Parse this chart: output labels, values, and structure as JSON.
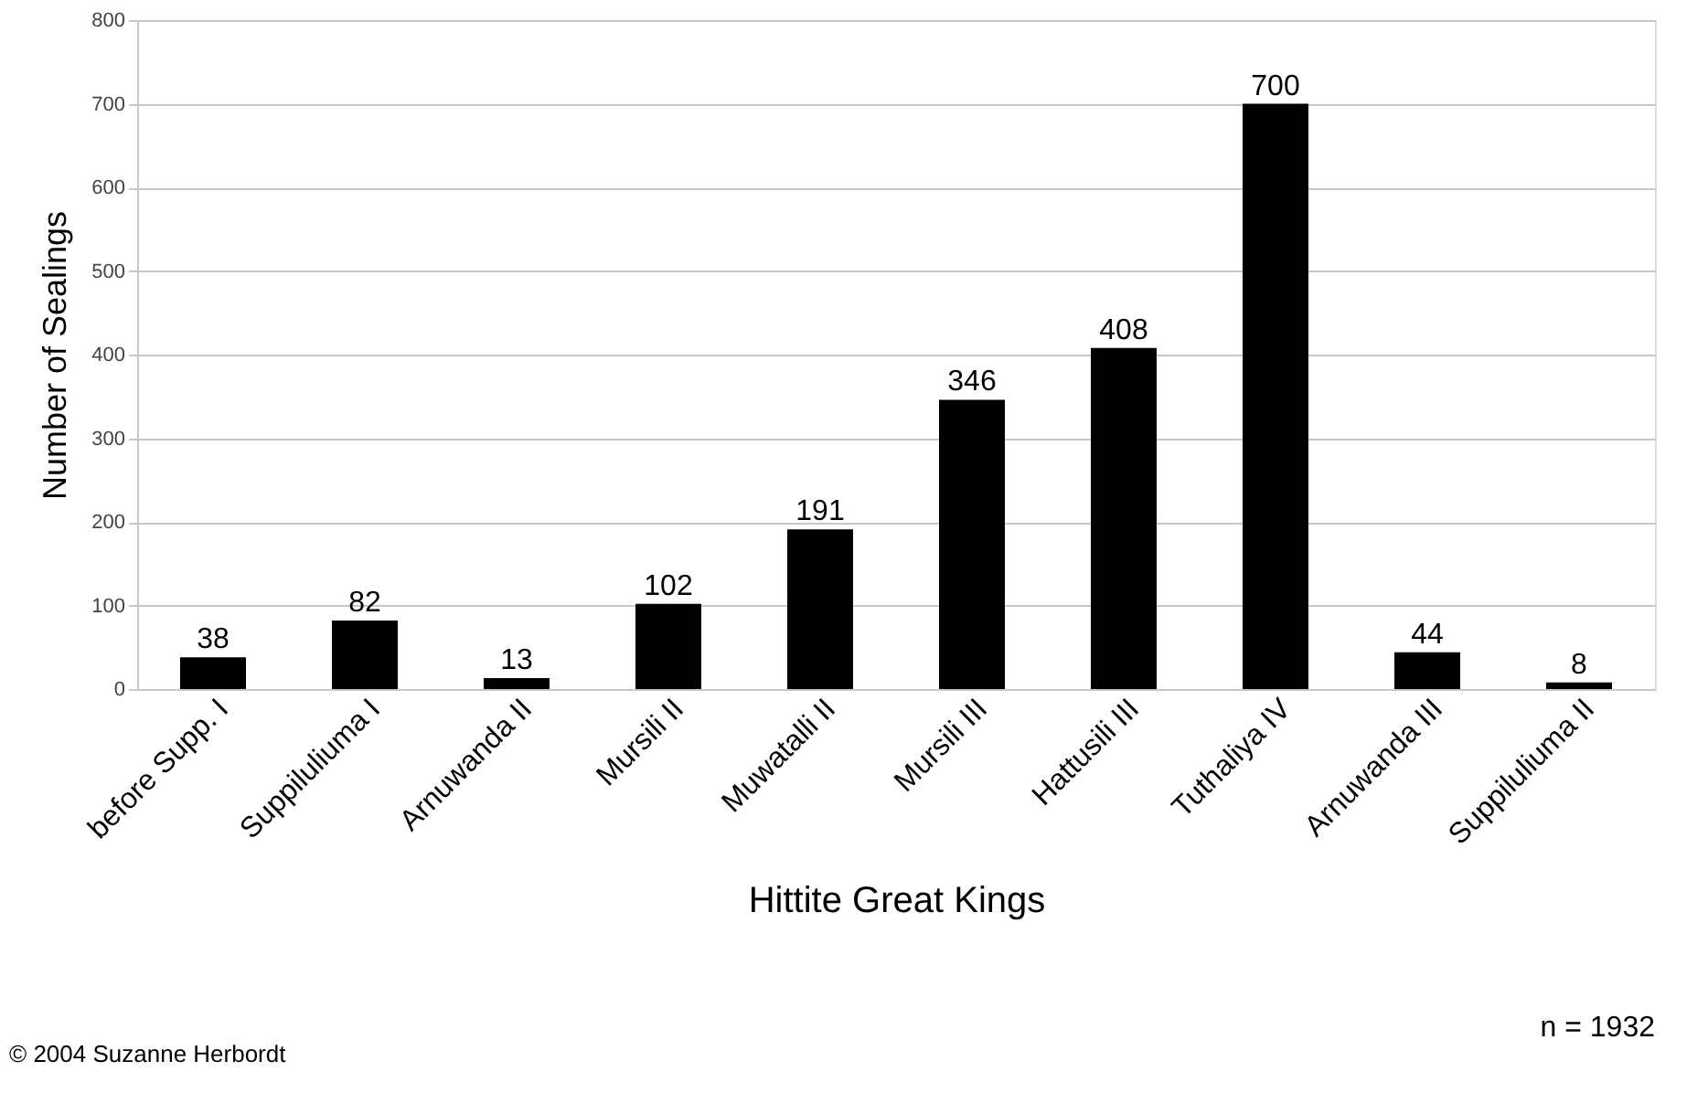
{
  "chart_data": {
    "type": "bar",
    "xlabel": "Hittite Great Kings",
    "ylabel": "Number of Sealings",
    "categories": [
      "before Supp. I",
      "Suppiluliuma I",
      "Arnuwanda II",
      "Mursili II",
      "Muwatalli II",
      "Mursili III",
      "Hattusili III",
      "Tuthaliya IV",
      "Arnuwanda III",
      "Suppiluliuma II"
    ],
    "values": [
      38,
      82,
      13,
      102,
      191,
      346,
      408,
      700,
      44,
      8
    ],
    "color": "#000000",
    "data_labels": true,
    "ylim": [
      0,
      800
    ],
    "yticks": [
      0,
      100,
      200,
      300,
      400,
      500,
      600,
      700,
      800
    ],
    "grid": "y",
    "annotations": [
      "n = 1932",
      "© 2004 Suzanne Herbordt"
    ]
  }
}
